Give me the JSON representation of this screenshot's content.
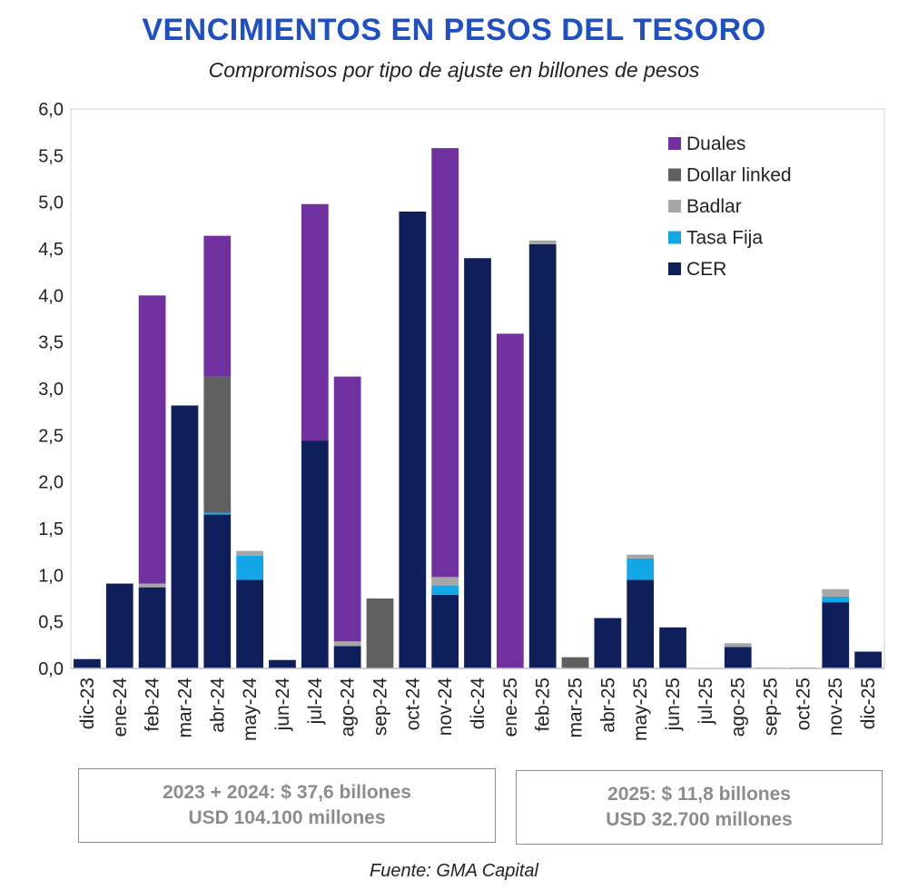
{
  "chart_data": {
    "type": "bar",
    "stacked": true,
    "title": "VENCIMIENTOS EN PESOS DEL TESORO",
    "subtitle": "Compromisos por tipo de ajuste en billones de pesos",
    "categories": [
      "dic-23",
      "ene-24",
      "feb-24",
      "mar-24",
      "abr-24",
      "may-24",
      "jun-24",
      "jul-24",
      "ago-24",
      "sep-24",
      "oct-24",
      "nov-24",
      "dic-24",
      "ene-25",
      "feb-25",
      "mar-25",
      "abr-25",
      "may-25",
      "jun-25",
      "jul-25",
      "ago-25",
      "sep-25",
      "oct-25",
      "nov-25",
      "dic-25"
    ],
    "series": [
      {
        "name": "CER",
        "color": "#0f1f5c",
        "values": [
          0.1,
          0.91,
          0.87,
          2.82,
          1.65,
          0.95,
          0.09,
          2.44,
          0.24,
          0,
          4.9,
          0.79,
          4.4,
          0,
          4.55,
          0,
          0.54,
          0.95,
          0.44,
          0,
          0.23,
          0,
          0,
          0.71,
          0.18
        ]
      },
      {
        "name": "Tasa Fija",
        "color": "#12a8e8",
        "values": [
          0,
          0,
          0,
          0,
          0.02,
          0.26,
          0,
          0,
          0,
          0,
          0,
          0.1,
          0,
          0,
          0,
          0,
          0,
          0.23,
          0,
          0,
          0,
          0,
          0.01,
          0.06,
          0
        ]
      },
      {
        "name": "Badlar",
        "color": "#a6a6a6",
        "values": [
          0,
          0,
          0.04,
          0,
          0,
          0.05,
          0,
          0,
          0.05,
          0,
          0,
          0.09,
          0,
          0,
          0.04,
          0,
          0,
          0.04,
          0,
          0,
          0.04,
          0.01,
          0,
          0.08,
          0
        ]
      },
      {
        "name": "Dollar linked",
        "color": "#606060",
        "values": [
          0,
          0,
          0,
          0,
          1.46,
          0,
          0,
          0,
          0,
          0.75,
          0,
          0,
          0,
          0,
          0,
          0.12,
          0,
          0,
          0,
          0,
          0,
          0,
          0,
          0,
          0
        ]
      },
      {
        "name": "Duales",
        "color": "#7030a0",
        "values": [
          0,
          0,
          3.09,
          0,
          1.51,
          0,
          0,
          2.54,
          2.84,
          0,
          0,
          4.6,
          0,
          3.59,
          0,
          0,
          0,
          0,
          0,
          0,
          0,
          0,
          0,
          0,
          0
        ]
      }
    ],
    "legend_order": [
      "Duales",
      "Dollar linked",
      "Badlar",
      "Tasa Fija",
      "CER"
    ],
    "legend_position": "top-right",
    "ylim": [
      0,
      6
    ],
    "yticks": [
      "0,0",
      "0,5",
      "1,0",
      "1,5",
      "2,0",
      "2,5",
      "3,0",
      "3,5",
      "4,0",
      "4,5",
      "5,0",
      "5,5",
      "6,0"
    ],
    "xlabel": "",
    "ylabel": ""
  },
  "summary_boxes": [
    {
      "line1": "2023 + 2024: $ 37,6 billones",
      "line2": "USD 104.100 millones"
    },
    {
      "line1": "2025: $ 11,8 billones",
      "line2": "USD 32.700 millones"
    }
  ],
  "source": "Fuente: GMA Capital"
}
